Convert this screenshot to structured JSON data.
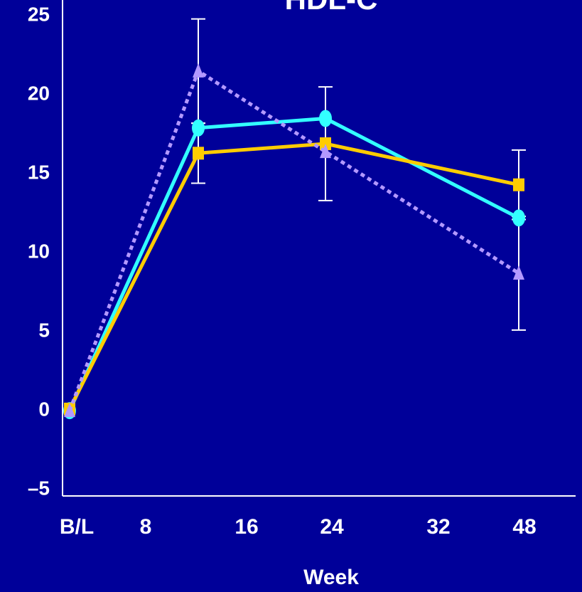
{
  "chart_data": {
    "type": "line",
    "title": "HDL-C",
    "x_label": "Week",
    "x_labels": [
      "B/L",
      "8",
      "16",
      "24",
      "32",
      "48"
    ],
    "ylim": [
      -5.4,
      26
    ],
    "yticks": [
      {
        "value": -5,
        "label": "–5"
      },
      0,
      5,
      10,
      15,
      20,
      25
    ],
    "grid": false,
    "series": [
      {
        "color": "#33ffff",
        "marker": "circle",
        "dash": false,
        "values": [
          0,
          17.9,
          18.5,
          12.2
        ],
        "errors": [
          0,
          0,
          0,
          0
        ]
      },
      {
        "color": "#ffcc00",
        "marker": "square",
        "dash": false,
        "values": [
          0.1,
          16.3,
          16.9,
          14.3
        ],
        "errors": [
          0,
          1.9,
          3.6,
          2.2
        ]
      },
      {
        "color": "#b399ff",
        "marker": "triangle",
        "dash": true,
        "values": [
          0,
          21.5,
          16.4,
          8.7
        ],
        "errors": [
          0,
          3.3,
          0,
          3.6
        ]
      }
    ]
  }
}
